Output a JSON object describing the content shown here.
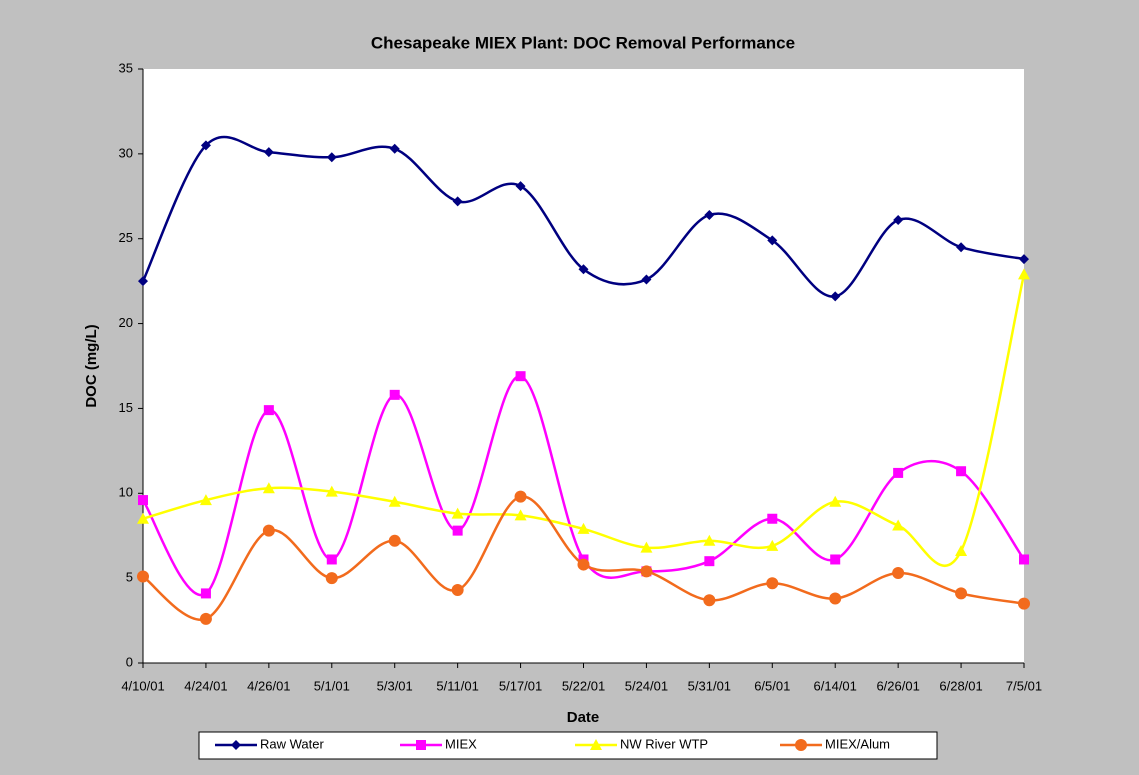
{
  "chart_data": {
    "type": "line",
    "title": "Chesapeake MIEX Plant: DOC Removal Performance",
    "x_label": "Date",
    "y_label": "DOC (mg/L)",
    "categories": [
      "4/10/01",
      "4/24/01",
      "4/26/01",
      "5/1/01",
      "5/3/01",
      "5/11/01",
      "5/17/01",
      "5/22/01",
      "5/24/01",
      "5/31/01",
      "6/5/01",
      "6/14/01",
      "6/26/01",
      "6/28/01",
      "7/5/01"
    ],
    "series": [
      {
        "name": "Raw Water",
        "color": "#000080",
        "marker": "diamond",
        "values": [
          22.5,
          30.5,
          30.1,
          29.8,
          30.3,
          27.2,
          28.1,
          23.2,
          22.6,
          26.4,
          24.9,
          21.6,
          26.1,
          24.5,
          23.8
        ]
      },
      {
        "name": "MIEX",
        "color": "#ff00ff",
        "marker": "square",
        "values": [
          9.6,
          4.1,
          14.9,
          6.1,
          15.8,
          7.8,
          16.9,
          6.1,
          5.4,
          6.0,
          8.5,
          6.1,
          11.2,
          11.3,
          6.1
        ]
      },
      {
        "name": "NW River WTP",
        "color": "#ffff00",
        "marker": "triangle",
        "values": [
          8.5,
          9.6,
          10.3,
          10.1,
          9.5,
          8.8,
          8.7,
          7.9,
          6.8,
          7.2,
          6.9,
          9.5,
          8.1,
          6.6,
          22.9
        ]
      },
      {
        "name": "MIEX/Alum",
        "color": "#f26b1d",
        "marker": "circle",
        "values": [
          5.1,
          2.6,
          7.8,
          5.0,
          7.2,
          4.3,
          9.8,
          5.8,
          5.4,
          3.7,
          4.7,
          3.8,
          5.3,
          4.1,
          3.5
        ]
      }
    ],
    "ylim": [
      0,
      35
    ],
    "yticks": [
      0,
      5,
      10,
      15,
      20,
      25,
      30,
      35
    ],
    "grid": false,
    "legend": "bottom",
    "smooth": true
  }
}
